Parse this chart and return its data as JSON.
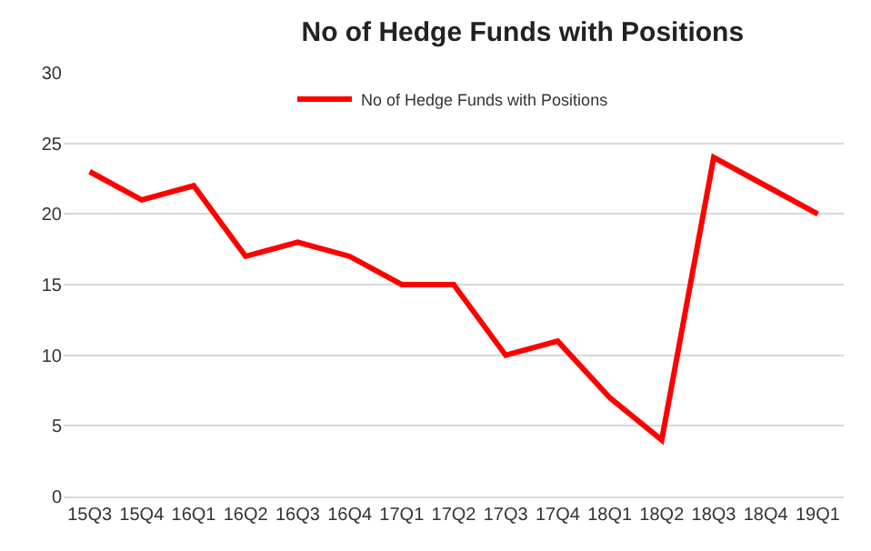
{
  "chart_data": {
    "type": "line",
    "title": "No of Hedge Funds with Positions",
    "categories": [
      "15Q3",
      "15Q4",
      "16Q1",
      "16Q2",
      "16Q3",
      "16Q4",
      "17Q1",
      "17Q2",
      "17Q3",
      "17Q4",
      "18Q1",
      "18Q2",
      "18Q3",
      "18Q4",
      "19Q1"
    ],
    "series": [
      {
        "name": "No of Hedge Funds with Positions",
        "color": "#ff0000",
        "values": [
          23,
          21,
          22,
          17,
          18,
          17,
          15,
          15,
          10,
          11,
          7,
          4,
          24,
          22,
          20
        ]
      }
    ],
    "ylim": [
      0,
      30
    ],
    "yticks": [
      0,
      5,
      10,
      15,
      20,
      25,
      30
    ],
    "grid": "y",
    "legend": "top",
    "marker": "none",
    "line_style": "solid"
  }
}
